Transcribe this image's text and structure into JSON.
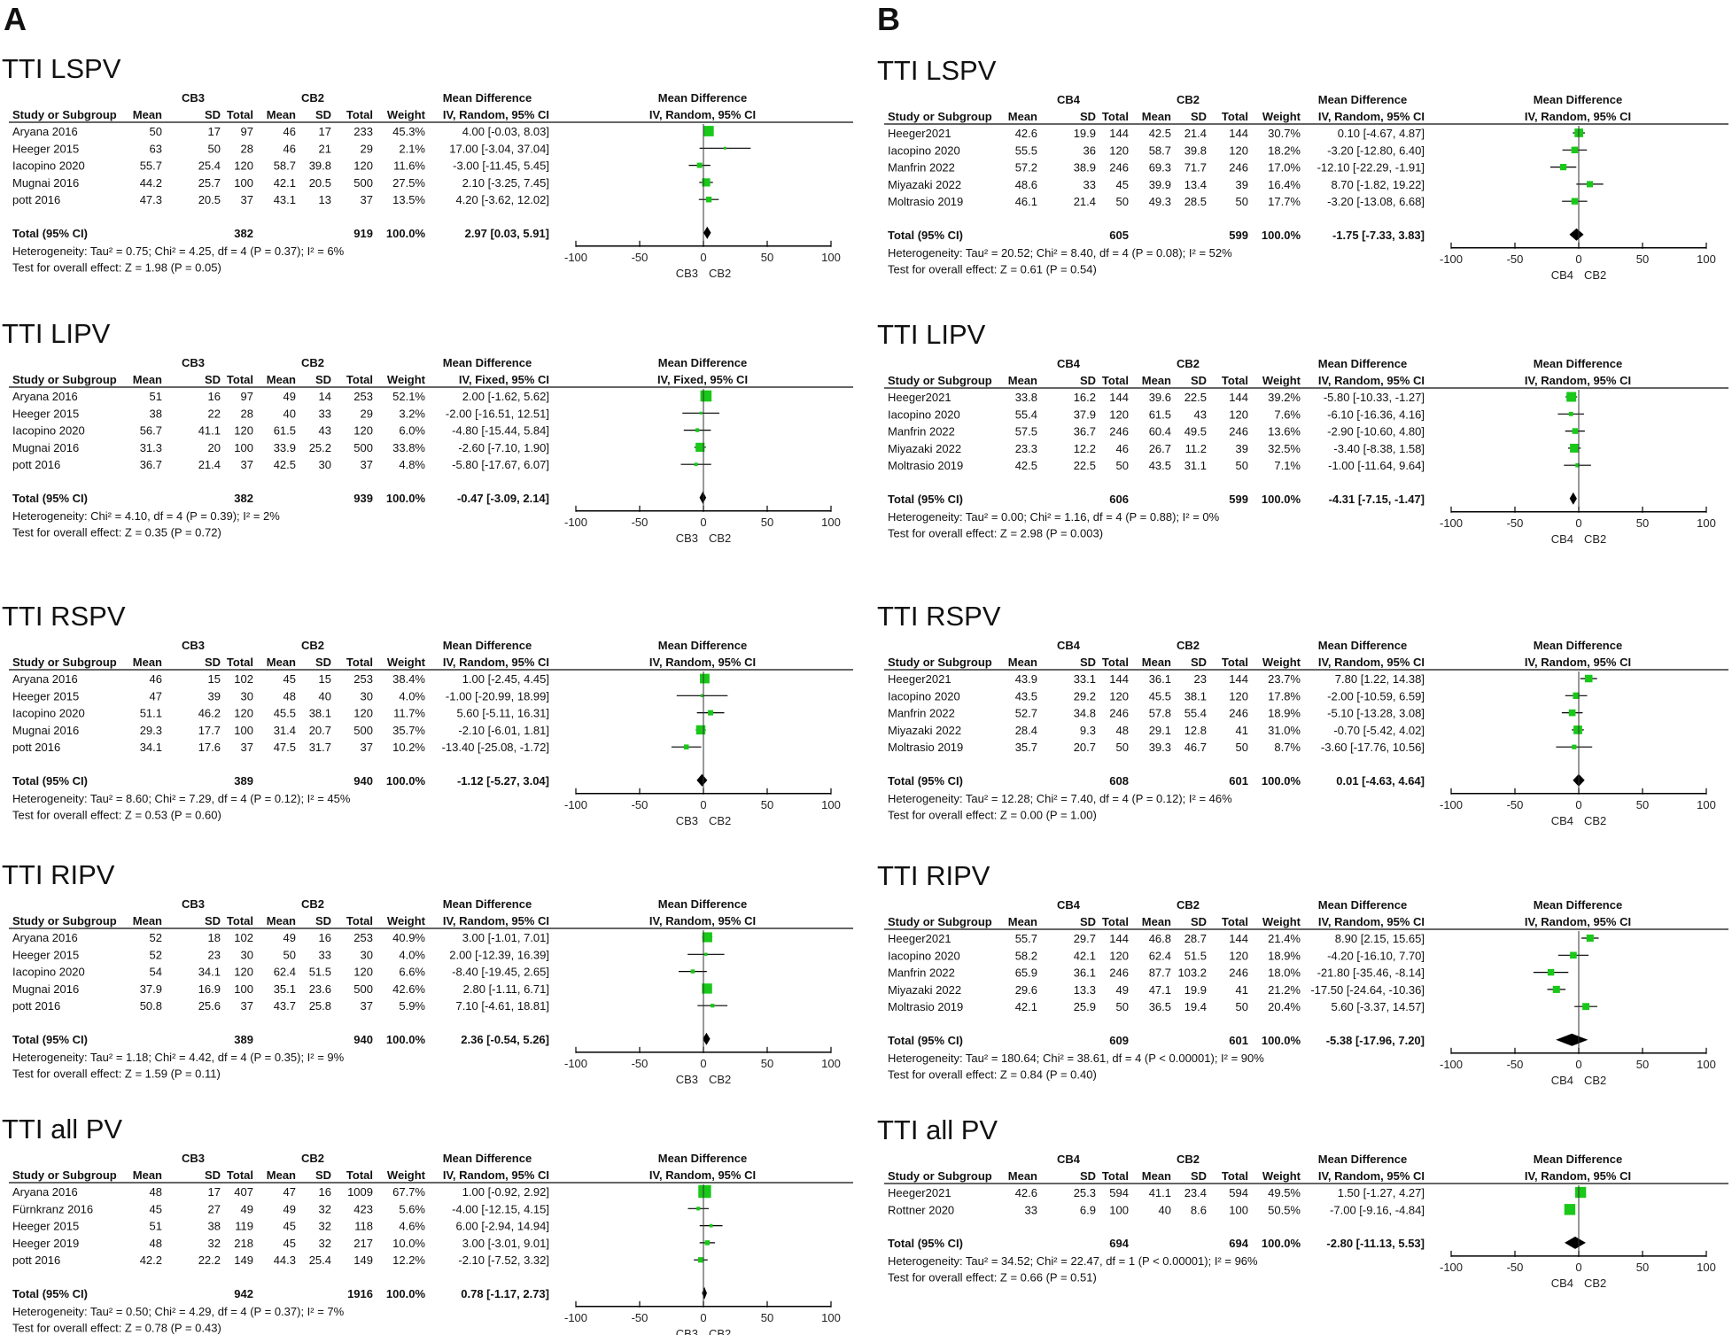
{
  "panel_labels": [
    "A",
    "B"
  ],
  "columns": [
    "Study or Subgroup",
    "Mean",
    "SD",
    "Total",
    "Mean",
    "SD",
    "Total",
    "Weight"
  ],
  "total_label": "Total (95% CI)",
  "md_header": "Mean Difference",
  "colors": {
    "square": "#19c819",
    "line": "#000000"
  },
  "chart_data": [
    {
      "type": "forest",
      "panel": "A",
      "title": "TTI LSPV",
      "group1": "CB3",
      "group2": "CB2",
      "method": "IV, Random, 95% CI",
      "studies": [
        [
          "Aryana 2016",
          "50",
          "17",
          "97",
          "46",
          "17",
          "233",
          "45.3%",
          "4.00 [-0.03, 8.03]"
        ],
        [
          "Heeger 2015",
          "63",
          "50",
          "28",
          "46",
          "21",
          "29",
          "2.1%",
          "17.00 [-3.04, 37.04]"
        ],
        [
          "Iacopino 2020",
          "55.7",
          "25.4",
          "120",
          "58.7",
          "39.8",
          "120",
          "11.6%",
          "-3.00 [-11.45, 5.45]"
        ],
        [
          "Mugnai 2016",
          "44.2",
          "25.7",
          "100",
          "42.1",
          "20.5",
          "500",
          "27.5%",
          "2.10 [-3.25, 7.45]"
        ],
        [
          "pott 2016",
          "47.3",
          "20.5",
          "37",
          "43.1",
          "13",
          "37",
          "13.5%",
          "4.20 [-3.62, 12.02]"
        ]
      ],
      "total": [
        "382",
        "919",
        "100.0%",
        "2.97 [0.03, 5.91]"
      ],
      "heterogeneity": "Heterogeneity: Tau² = 0.75; Chi² = 4.25, df = 4 (P = 0.37); I² = 6%",
      "test": "Test for overall effect: Z = 1.98 (P = 0.05)",
      "xticks": [
        "-100",
        "-50",
        "0",
        "50",
        "100"
      ],
      "xlim": [
        -100,
        100
      ]
    },
    {
      "type": "forest",
      "panel": "A",
      "title": "TTI LIPV",
      "group1": "CB3",
      "group2": "CB2",
      "method": "IV, Fixed, 95% CI",
      "studies": [
        [
          "Aryana 2016",
          "51",
          "16",
          "97",
          "49",
          "14",
          "253",
          "52.1%",
          "2.00 [-1.62, 5.62]"
        ],
        [
          "Heeger 2015",
          "38",
          "22",
          "28",
          "40",
          "33",
          "29",
          "3.2%",
          "-2.00 [-16.51, 12.51]"
        ],
        [
          "Iacopino 2020",
          "56.7",
          "41.1",
          "120",
          "61.5",
          "43",
          "120",
          "6.0%",
          "-4.80 [-15.44, 5.84]"
        ],
        [
          "Mugnai 2016",
          "31.3",
          "20",
          "100",
          "33.9",
          "25.2",
          "500",
          "33.8%",
          "-2.60 [-7.10, 1.90]"
        ],
        [
          "pott 2016",
          "36.7",
          "21.4",
          "37",
          "42.5",
          "30",
          "37",
          "4.8%",
          "-5.80 [-17.67, 6.07]"
        ]
      ],
      "total": [
        "382",
        "939",
        "100.0%",
        "-0.47 [-3.09, 2.14]"
      ],
      "heterogeneity": "Heterogeneity: Chi² = 4.10, df = 4 (P = 0.39); I² = 2%",
      "test": "Test for overall effect: Z = 0.35 (P = 0.72)",
      "xticks": [
        "-100",
        "-50",
        "0",
        "50",
        "100"
      ],
      "xlim": [
        -100,
        100
      ]
    },
    {
      "type": "forest",
      "panel": "A",
      "title": "TTI RSPV",
      "group1": "CB3",
      "group2": "CB2",
      "method": "IV, Random, 95% CI",
      "studies": [
        [
          "Aryana 2016",
          "46",
          "15",
          "102",
          "45",
          "15",
          "253",
          "38.4%",
          "1.00 [-2.45, 4.45]"
        ],
        [
          "Heeger 2015",
          "47",
          "39",
          "30",
          "48",
          "40",
          "30",
          "4.0%",
          "-1.00 [-20.99, 18.99]"
        ],
        [
          "Iacopino 2020",
          "51.1",
          "46.2",
          "120",
          "45.5",
          "38.1",
          "120",
          "11.7%",
          "5.60 [-5.11, 16.31]"
        ],
        [
          "Mugnai 2016",
          "29.3",
          "17.7",
          "100",
          "31.4",
          "20.7",
          "500",
          "35.7%",
          "-2.10 [-6.01, 1.81]"
        ],
        [
          "pott 2016",
          "34.1",
          "17.6",
          "37",
          "47.5",
          "31.7",
          "37",
          "10.2%",
          "-13.40 [-25.08, -1.72]"
        ]
      ],
      "total": [
        "389",
        "940",
        "100.0%",
        "-1.12 [-5.27, 3.04]"
      ],
      "heterogeneity": "Heterogeneity: Tau² = 8.60; Chi² = 7.29, df = 4 (P = 0.12); I² = 45%",
      "test": "Test for overall effect: Z = 0.53 (P = 0.60)",
      "xticks": [
        "-100",
        "-50",
        "0",
        "50",
        "100"
      ],
      "xlim": [
        -100,
        100
      ]
    },
    {
      "type": "forest",
      "panel": "A",
      "title": "TTI RIPV",
      "group1": "CB3",
      "group2": "CB2",
      "method": "IV, Random, 95% CI",
      "studies": [
        [
          "Aryana 2016",
          "52",
          "18",
          "102",
          "49",
          "16",
          "253",
          "40.9%",
          "3.00 [-1.01, 7.01]"
        ],
        [
          "Heeger 2015",
          "52",
          "23",
          "30",
          "50",
          "33",
          "30",
          "4.0%",
          "2.00 [-12.39, 16.39]"
        ],
        [
          "Iacopino 2020",
          "54",
          "34.1",
          "120",
          "62.4",
          "51.5",
          "120",
          "6.6%",
          "-8.40 [-19.45, 2.65]"
        ],
        [
          "Mugnai 2016",
          "37.9",
          "16.9",
          "100",
          "35.1",
          "23.6",
          "500",
          "42.6%",
          "2.80 [-1.11, 6.71]"
        ],
        [
          "pott 2016",
          "50.8",
          "25.6",
          "37",
          "43.7",
          "25.8",
          "37",
          "5.9%",
          "7.10 [-4.61, 18.81]"
        ]
      ],
      "total": [
        "389",
        "940",
        "100.0%",
        "2.36 [-0.54, 5.26]"
      ],
      "heterogeneity": "Heterogeneity: Tau² = 1.18; Chi² = 4.42, df = 4 (P = 0.35); I² = 9%",
      "test": "Test for overall effect: Z = 1.59 (P = 0.11)",
      "xticks": [
        "-100",
        "-50",
        "0",
        "50",
        "100"
      ],
      "xlim": [
        -100,
        100
      ]
    },
    {
      "type": "forest",
      "panel": "A",
      "title": "TTI all PV",
      "group1": "CB3",
      "group2": "CB2",
      "method": "IV, Random, 95% CI",
      "studies": [
        [
          "Aryana 2016",
          "48",
          "17",
          "407",
          "47",
          "16",
          "1009",
          "67.7%",
          "1.00 [-0.92, 2.92]"
        ],
        [
          "Fürnkranz 2016",
          "45",
          "27",
          "49",
          "49",
          "32",
          "423",
          "5.6%",
          "-4.00 [-12.15, 4.15]"
        ],
        [
          "Heeger 2015",
          "51",
          "38",
          "119",
          "45",
          "32",
          "118",
          "4.6%",
          "6.00 [-2.94, 14.94]"
        ],
        [
          "Heeger 2019",
          "48",
          "32",
          "218",
          "45",
          "32",
          "217",
          "10.0%",
          "3.00 [-3.01, 9.01]"
        ],
        [
          "pott 2016",
          "42.2",
          "22.2",
          "149",
          "44.3",
          "25.4",
          "149",
          "12.2%",
          "-2.10 [-7.52, 3.32]"
        ]
      ],
      "total": [
        "942",
        "1916",
        "100.0%",
        "0.78 [-1.17, 2.73]"
      ],
      "heterogeneity": "Heterogeneity: Tau² = 0.50; Chi² = 4.29, df = 4 (P = 0.37); I² = 7%",
      "test": "Test for overall effect: Z = 0.78 (P = 0.43)",
      "xticks": [
        "-100",
        "-50",
        "0",
        "50",
        "100"
      ],
      "xlim": [
        -100,
        100
      ]
    },
    {
      "type": "forest",
      "panel": "B",
      "title": "TTI LSPV",
      "group1": "CB4",
      "group2": "CB2",
      "method": "IV, Random, 95% CI",
      "studies": [
        [
          "Heeger2021",
          "42.6",
          "19.9",
          "144",
          "42.5",
          "21.4",
          "144",
          "30.7%",
          "0.10 [-4.67, 4.87]"
        ],
        [
          "Iacopino 2020",
          "55.5",
          "36",
          "120",
          "58.7",
          "39.8",
          "120",
          "18.2%",
          "-3.20 [-12.80, 6.40]"
        ],
        [
          "Manfrin 2022",
          "57.2",
          "38.9",
          "246",
          "69.3",
          "71.7",
          "246",
          "17.0%",
          "-12.10 [-22.29, -1.91]"
        ],
        [
          "Miyazaki 2022",
          "48.6",
          "33",
          "45",
          "39.9",
          "13.4",
          "39",
          "16.4%",
          "8.70 [-1.82, 19.22]"
        ],
        [
          "Moltrasio 2019",
          "46.1",
          "21.4",
          "50",
          "49.3",
          "28.5",
          "50",
          "17.7%",
          "-3.20 [-13.08, 6.68]"
        ]
      ],
      "total": [
        "605",
        "599",
        "100.0%",
        "-1.75 [-7.33, 3.83]"
      ],
      "heterogeneity": "Heterogeneity: Tau² = 20.52; Chi² = 8.40, df = 4 (P = 0.08); I² = 52%",
      "test": "Test for overall effect: Z = 0.61 (P = 0.54)",
      "xticks": [
        "-100",
        "-50",
        "0",
        "50",
        "100"
      ],
      "xlim": [
        -100,
        100
      ]
    },
    {
      "type": "forest",
      "panel": "B",
      "title": "TTI LIPV",
      "group1": "CB4",
      "group2": "CB2",
      "method": "IV, Random, 95% CI",
      "studies": [
        [
          "Heeger2021",
          "33.8",
          "16.2",
          "144",
          "39.6",
          "22.5",
          "144",
          "39.2%",
          "-5.80 [-10.33, -1.27]"
        ],
        [
          "Iacopino 2020",
          "55.4",
          "37.9",
          "120",
          "61.5",
          "43",
          "120",
          "7.6%",
          "-6.10 [-16.36, 4.16]"
        ],
        [
          "Manfrin 2022",
          "57.5",
          "36.7",
          "246",
          "60.4",
          "49.5",
          "246",
          "13.6%",
          "-2.90 [-10.60, 4.80]"
        ],
        [
          "Miyazaki 2022",
          "23.3",
          "12.2",
          "46",
          "26.7",
          "11.2",
          "39",
          "32.5%",
          "-3.40 [-8.38, 1.58]"
        ],
        [
          "Moltrasio 2019",
          "42.5",
          "22.5",
          "50",
          "43.5",
          "31.1",
          "50",
          "7.1%",
          "-1.00 [-11.64, 9.64]"
        ]
      ],
      "total": [
        "606",
        "599",
        "100.0%",
        "-4.31 [-7.15, -1.47]"
      ],
      "heterogeneity": "Heterogeneity: Tau² = 0.00; Chi² = 1.16, df = 4 (P = 0.88); I² = 0%",
      "test": "Test for overall effect: Z = 2.98 (P = 0.003)",
      "xticks": [
        "-100",
        "-50",
        "0",
        "50",
        "100"
      ],
      "xlim": [
        -100,
        100
      ]
    },
    {
      "type": "forest",
      "panel": "B",
      "title": "TTI RSPV",
      "group1": "CB4",
      "group2": "CB2",
      "method": "IV, Random, 95% CI",
      "studies": [
        [
          "Heeger2021",
          "43.9",
          "33.1",
          "144",
          "36.1",
          "23",
          "144",
          "23.7%",
          "7.80 [1.22, 14.38]"
        ],
        [
          "Iacopino 2020",
          "43.5",
          "29.2",
          "120",
          "45.5",
          "38.1",
          "120",
          "17.8%",
          "-2.00 [-10.59, 6.59]"
        ],
        [
          "Manfrin 2022",
          "52.7",
          "34.8",
          "246",
          "57.8",
          "55.4",
          "246",
          "18.9%",
          "-5.10 [-13.28, 3.08]"
        ],
        [
          "Miyazaki 2022",
          "28.4",
          "9.3",
          "48",
          "29.1",
          "12.8",
          "41",
          "31.0%",
          "-0.70 [-5.42, 4.02]"
        ],
        [
          "Moltrasio 2019",
          "35.7",
          "20.7",
          "50",
          "39.3",
          "46.7",
          "50",
          "8.7%",
          "-3.60 [-17.76, 10.56]"
        ]
      ],
      "total": [
        "608",
        "601",
        "100.0%",
        "0.01 [-4.63, 4.64]"
      ],
      "heterogeneity": "Heterogeneity: Tau² = 12.28; Chi² = 7.40, df = 4 (P = 0.12); I² = 46%",
      "test": "Test for overall effect: Z = 0.00 (P = 1.00)",
      "xticks": [
        "-100",
        "-50",
        "0",
        "50",
        "100"
      ],
      "xlim": [
        -100,
        100
      ]
    },
    {
      "type": "forest",
      "panel": "B",
      "title": "TTI RIPV",
      "group1": "CB4",
      "group2": "CB2",
      "method": "IV, Random, 95% CI",
      "studies": [
        [
          "Heeger2021",
          "55.7",
          "29.7",
          "144",
          "46.8",
          "28.7",
          "144",
          "21.4%",
          "8.90 [2.15, 15.65]"
        ],
        [
          "Iacopino 2020",
          "58.2",
          "42.1",
          "120",
          "62.4",
          "51.5",
          "120",
          "18.9%",
          "-4.20 [-16.10, 7.70]"
        ],
        [
          "Manfrin 2022",
          "65.9",
          "36.1",
          "246",
          "87.7",
          "103.2",
          "246",
          "18.0%",
          "-21.80 [-35.46, -8.14]"
        ],
        [
          "Miyazaki 2022",
          "29.6",
          "13.3",
          "49",
          "47.1",
          "19.9",
          "41",
          "21.2%",
          "-17.50 [-24.64, -10.36]"
        ],
        [
          "Moltrasio 2019",
          "42.1",
          "25.9",
          "50",
          "36.5",
          "19.4",
          "50",
          "20.4%",
          "5.60 [-3.37, 14.57]"
        ]
      ],
      "total": [
        "609",
        "601",
        "100.0%",
        "-5.38 [-17.96, 7.20]"
      ],
      "heterogeneity": "Heterogeneity: Tau² = 180.64; Chi² = 38.61, df = 4 (P < 0.00001); I² = 90%",
      "test": "Test for overall effect: Z = 0.84 (P = 0.40)",
      "xticks": [
        "-100",
        "-50",
        "0",
        "50",
        "100"
      ],
      "xlim": [
        -100,
        100
      ]
    },
    {
      "type": "forest",
      "panel": "B",
      "title": "TTI all PV",
      "group1": "CB4",
      "group2": "CB2",
      "method": "IV, Random, 95% CI",
      "studies": [
        [
          "Heeger2021",
          "42.6",
          "25.3",
          "594",
          "41.1",
          "23.4",
          "594",
          "49.5%",
          "1.50 [-1.27, 4.27]"
        ],
        [
          "Rottner  2020",
          "33",
          "6.9",
          "100",
          "40",
          "8.6",
          "100",
          "50.5%",
          "-7.00 [-9.16, -4.84]"
        ]
      ],
      "total": [
        "694",
        "694",
        "100.0%",
        "-2.80 [-11.13, 5.53]"
      ],
      "heterogeneity": "Heterogeneity: Tau² = 34.52; Chi² = 22.47, df = 1 (P < 0.00001); I² = 96%",
      "test": "Test for overall effect: Z = 0.66 (P = 0.51)",
      "xticks": [
        "-100",
        "-50",
        "0",
        "50",
        "100"
      ],
      "xlim": [
        -100,
        100
      ]
    }
  ]
}
